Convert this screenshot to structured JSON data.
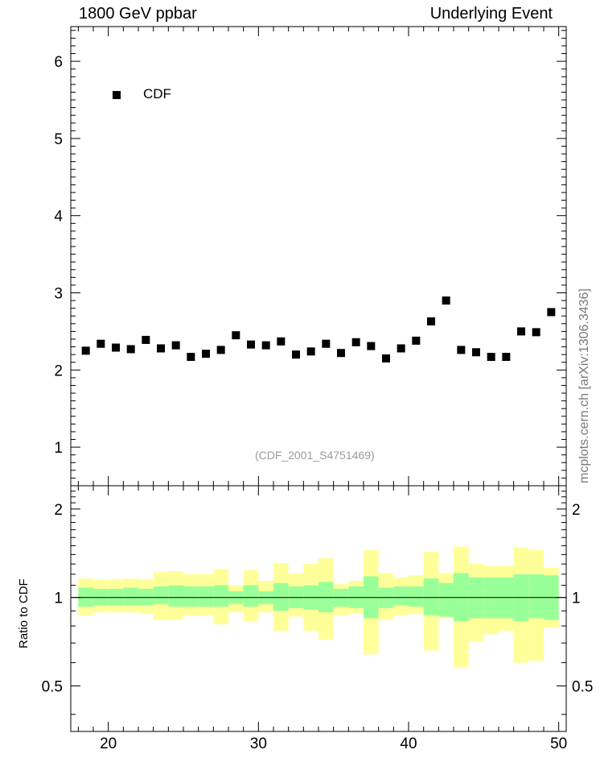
{
  "header": {
    "left": "1800 GeV ppbar",
    "right": "Underlying Event"
  },
  "side_label": "mcplots.cern.ch [arXiv:1306.3436]",
  "colors": {
    "marker": "#000000",
    "band_inner": "#99ff99",
    "band_outer": "#ffff99",
    "annotation": "#9a9a9a"
  },
  "chart_data": [
    {
      "type": "scatter",
      "legend": [
        "CDF"
      ],
      "legend_placement": "top-left",
      "annotation": "(CDF_2001_S4751469)",
      "xlim": [
        17.5,
        50.5
      ],
      "ylim": [
        0.5,
        6.45
      ],
      "yticks": [
        1,
        2,
        3,
        4,
        5,
        6
      ],
      "series": [
        {
          "name": "CDF",
          "x": [
            18.5,
            19.5,
            20.5,
            21.5,
            22.5,
            23.5,
            24.5,
            25.5,
            26.5,
            27.5,
            28.5,
            29.5,
            30.5,
            31.5,
            32.5,
            33.5,
            34.5,
            35.5,
            36.5,
            37.5,
            38.5,
            39.5,
            40.5,
            41.5,
            42.5,
            43.5,
            44.5,
            45.5,
            46.5,
            47.5,
            48.5,
            49.5
          ],
          "y": [
            2.25,
            2.34,
            2.29,
            2.27,
            2.39,
            2.28,
            2.32,
            2.17,
            2.21,
            2.26,
            2.45,
            2.33,
            2.32,
            2.37,
            2.2,
            2.24,
            2.34,
            2.22,
            2.36,
            2.31,
            2.15,
            2.28,
            2.38,
            2.63,
            2.9,
            2.26,
            2.23,
            2.17,
            2.17,
            2.5,
            2.49,
            2.75
          ]
        }
      ]
    },
    {
      "type": "area",
      "ylabel": "Ratio to CDF",
      "log_y": true,
      "xlim": [
        17.5,
        50.5
      ],
      "ylim": [
        0.35,
        2.4
      ],
      "yticks": [
        0.5,
        1,
        2
      ],
      "xticks": [
        20,
        30,
        40,
        50
      ],
      "bin_edges": [
        18,
        19,
        20,
        21,
        22,
        23,
        24,
        25,
        26,
        27,
        28,
        29,
        30,
        31,
        32,
        33,
        34,
        35,
        36,
        37,
        38,
        39,
        40,
        41,
        42,
        43,
        44,
        45,
        46,
        47,
        48,
        49,
        50
      ],
      "inner_band": {
        "low": [
          0.93,
          0.94,
          0.94,
          0.94,
          0.94,
          0.95,
          0.93,
          0.93,
          0.93,
          0.93,
          0.95,
          0.93,
          0.95,
          0.9,
          0.92,
          0.91,
          0.89,
          0.93,
          0.92,
          0.85,
          0.92,
          0.94,
          0.93,
          0.87,
          0.86,
          0.83,
          0.85,
          0.85,
          0.85,
          0.83,
          0.85,
          0.84
        ],
        "high": [
          1.08,
          1.07,
          1.07,
          1.08,
          1.07,
          1.09,
          1.1,
          1.09,
          1.09,
          1.1,
          1.05,
          1.1,
          1.05,
          1.12,
          1.09,
          1.1,
          1.13,
          1.07,
          1.09,
          1.18,
          1.08,
          1.09,
          1.09,
          1.16,
          1.12,
          1.21,
          1.17,
          1.17,
          1.17,
          1.2,
          1.2,
          1.19
        ]
      },
      "outer_band": {
        "low": [
          0.87,
          0.89,
          0.89,
          0.89,
          0.88,
          0.84,
          0.84,
          0.87,
          0.87,
          0.81,
          0.89,
          0.83,
          0.89,
          0.77,
          0.86,
          0.77,
          0.72,
          0.87,
          0.88,
          0.64,
          0.84,
          0.87,
          0.88,
          0.66,
          0.85,
          0.58,
          0.71,
          0.75,
          0.77,
          0.6,
          0.61,
          0.79
        ],
        "high": [
          1.16,
          1.15,
          1.15,
          1.16,
          1.15,
          1.22,
          1.23,
          1.2,
          1.2,
          1.25,
          1.1,
          1.24,
          1.14,
          1.31,
          1.21,
          1.3,
          1.36,
          1.11,
          1.14,
          1.45,
          1.21,
          1.17,
          1.19,
          1.43,
          1.21,
          1.49,
          1.3,
          1.28,
          1.28,
          1.48,
          1.45,
          1.26
        ]
      },
      "reference_line": 1
    }
  ]
}
